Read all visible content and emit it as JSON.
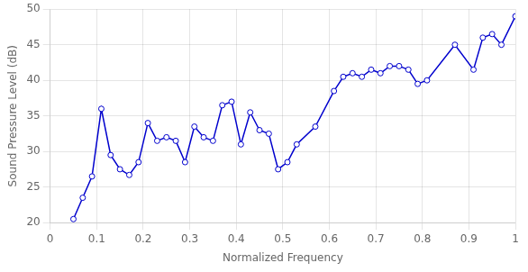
{
  "chart_data": {
    "type": "line",
    "x": [
      0.05,
      0.07,
      0.09,
      0.11,
      0.13,
      0.15,
      0.17,
      0.19,
      0.21,
      0.23,
      0.25,
      0.27,
      0.29,
      0.31,
      0.33,
      0.35,
      0.37,
      0.39,
      0.41,
      0.43,
      0.45,
      0.47,
      0.49,
      0.51,
      0.53,
      0.57,
      0.61,
      0.63,
      0.65,
      0.67,
      0.69,
      0.71,
      0.73,
      0.75,
      0.77,
      0.79,
      0.81,
      0.87,
      0.91,
      0.93,
      0.95,
      0.97,
      1.0
    ],
    "values": [
      20.5,
      23.5,
      26.5,
      36.0,
      29.5,
      27.5,
      26.7,
      28.5,
      34.0,
      31.5,
      32.0,
      31.5,
      28.5,
      33.5,
      32.0,
      31.5,
      36.5,
      37.0,
      31.0,
      35.5,
      33.0,
      32.5,
      27.5,
      28.5,
      31.0,
      33.5,
      38.5,
      40.5,
      41.0,
      40.5,
      41.5,
      41.0,
      42.0,
      42.0,
      41.5,
      39.5,
      40.0,
      45.0,
      41.5,
      46.0,
      46.5,
      45.0,
      49.0
    ],
    "color": "#0000CD",
    "marker": "circle",
    "xlabel": "Normalized Frequency",
    "ylabel": "Sound Pressure Level (dB)",
    "xlim": [
      0,
      1.0
    ],
    "ylim": [
      20,
      50
    ],
    "xticks": [
      0,
      0.1,
      0.2,
      0.3,
      0.4,
      0.5,
      0.6,
      0.7,
      0.8,
      0.9,
      1.0
    ],
    "yticks": [
      20,
      25,
      30,
      35,
      40,
      45,
      50
    ],
    "grid": true
  }
}
